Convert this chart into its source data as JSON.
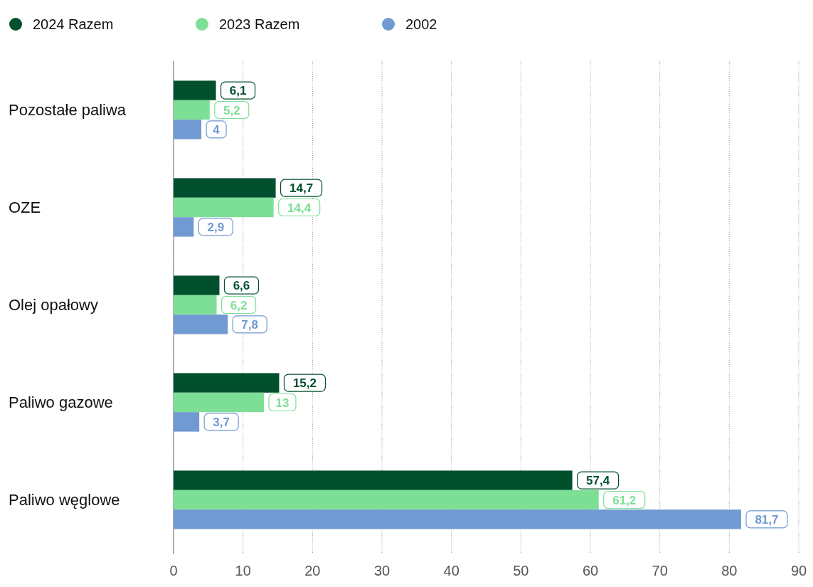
{
  "chart_data": {
    "type": "bar",
    "orientation": "horizontal",
    "categories": [
      "Pozostałe paliwa",
      "OZE",
      "Olej opałowy",
      "Paliwo gazowe",
      "Paliwo węglowe"
    ],
    "series": [
      {
        "name": "2024 Razem",
        "color": "#00502e",
        "values": [
          6.1,
          14.7,
          6.6,
          15.2,
          57.4
        ],
        "value_labels": [
          "6,1",
          "14,7",
          "6,6",
          "15,2",
          "57,4"
        ]
      },
      {
        "name": "2023 Razem",
        "color": "#7ddf96",
        "values": [
          5.2,
          14.4,
          6.2,
          13,
          61.2
        ],
        "value_labels": [
          "5,2",
          "14,4",
          "6,2",
          "13",
          "61,2"
        ]
      },
      {
        "name": "2002",
        "color": "#7199d2",
        "values": [
          4,
          2.9,
          7.8,
          3.7,
          81.7
        ],
        "value_labels": [
          "4",
          "2,9",
          "7,8",
          "3,7",
          "81,7"
        ]
      }
    ],
    "xlim": [
      0,
      90
    ],
    "xticks": [
      0,
      10,
      20,
      30,
      40,
      50,
      60,
      70,
      80,
      90
    ],
    "grid": "x",
    "legend": "top left"
  }
}
